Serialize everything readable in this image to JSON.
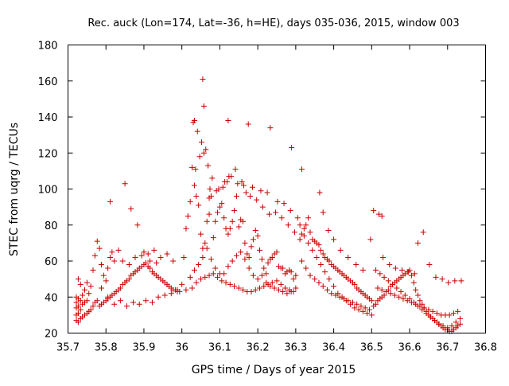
{
  "chart_data": {
    "type": "scatter",
    "title": "Rec. auck (Lon=174, Lat=-36, h=HE), days 035-036, 2015, window 003",
    "xlabel": "GPS time / Days of year 2015",
    "ylabel": "STEC from uqrg / TECUs",
    "xlim": [
      35.7,
      36.8
    ],
    "ylim": [
      20,
      180
    ],
    "xticks": [
      35.7,
      35.8,
      35.9,
      36.0,
      36.1,
      36.2,
      36.3,
      36.4,
      36.5,
      36.6,
      36.7,
      36.8
    ],
    "xtick_labels": [
      "35.7",
      "35.8",
      "35.9",
      "36",
      "36.1",
      "36.2",
      "36.3",
      "36.4",
      "36.5",
      "36.6",
      "36.7",
      "36.8"
    ],
    "yticks": [
      20,
      40,
      60,
      80,
      100,
      120,
      140,
      160,
      180
    ],
    "ytick_labels": [
      "20",
      "40",
      "60",
      "80",
      "100",
      "120",
      "140",
      "160",
      "180"
    ],
    "grid": false,
    "legend": "none",
    "marker": "plus",
    "marker_color": "#cc0000",
    "x": [
      35.722,
      35.722,
      35.722,
      35.722,
      35.722,
      35.727,
      35.727,
      35.727,
      35.727,
      35.727,
      35.733,
      35.733,
      35.733,
      35.733,
      35.738,
      35.738,
      35.738,
      35.744,
      35.744,
      35.744,
      35.75,
      35.75,
      35.75,
      35.755,
      35.755,
      35.76,
      35.76,
      35.766,
      35.766,
      35.771,
      35.771,
      35.777,
      35.777,
      35.783,
      35.783,
      35.788,
      35.788,
      35.794,
      35.794,
      35.8,
      35.8,
      35.805,
      35.805,
      35.811,
      35.811,
      35.816,
      35.816,
      35.822,
      35.822,
      35.827,
      35.833,
      35.838,
      35.844,
      35.85,
      35.855,
      35.861,
      35.866,
      35.872,
      35.877,
      35.883,
      35.888,
      35.894,
      35.9,
      35.905,
      35.911,
      35.916,
      35.922,
      35.927,
      35.933,
      35.938,
      35.944,
      35.95,
      35.955,
      35.961,
      35.966,
      35.972,
      35.977,
      35.983,
      35.988,
      35.994,
      35.788,
      35.805,
      35.822,
      35.838,
      35.855,
      35.872,
      35.888,
      35.905,
      35.922,
      35.938,
      35.955,
      35.972,
      35.988,
      35.833,
      35.844,
      35.861,
      35.877,
      35.894,
      35.911,
      35.927,
      35.944,
      35.961,
      35.977,
      35.811,
      35.85,
      35.866,
      35.883,
      35.9,
      35.916,
      35.933,
      36.0,
      36.005,
      36.011,
      36.016,
      36.022,
      36.027,
      36.033,
      36.038,
      36.044,
      36.05,
      36.055,
      36.061,
      36.066,
      36.072,
      36.077,
      36.083,
      36.088,
      36.094,
      36.1,
      36.105,
      36.111,
      36.116,
      36.122,
      36.127,
      36.133,
      36.138,
      36.144,
      36.15,
      36.155,
      36.161,
      36.166,
      36.172,
      36.177,
      36.183,
      36.188,
      36.194,
      36.2,
      36.205,
      36.211,
      36.216,
      36.222,
      36.227,
      36.233,
      36.238,
      36.244,
      36.25,
      36.255,
      36.261,
      36.266,
      36.272,
      36.277,
      36.283,
      36.288,
      36.294,
      36.3,
      36.011,
      36.022,
      36.033,
      36.044,
      36.055,
      36.066,
      36.077,
      36.088,
      36.1,
      36.111,
      36.122,
      36.133,
      36.144,
      36.155,
      36.166,
      36.177,
      36.188,
      36.2,
      36.211,
      36.222,
      36.233,
      36.244,
      36.255,
      36.266,
      36.277,
      36.288,
      36.3,
      36.027,
      36.038,
      36.05,
      36.061,
      36.072,
      36.083,
      36.094,
      36.105,
      36.116,
      36.127,
      36.138,
      36.15,
      36.161,
      36.172,
      36.183,
      36.194,
      36.205,
      36.216,
      36.227,
      36.238,
      36.25,
      36.261,
      36.272,
      36.283,
      36.294,
      36.03,
      36.041,
      36.052,
      36.063,
      36.074,
      36.091,
      36.108,
      36.119,
      36.13,
      36.141,
      36.158,
      36.169,
      36.18,
      36.197,
      36.213,
      36.23,
      36.247,
      36.263,
      36.28,
      36.297,
      36.036,
      36.047,
      36.058,
      36.069,
      36.08,
      36.097,
      36.113,
      36.124,
      36.147,
      36.163,
      36.186,
      36.208,
      36.225,
      36.252,
      36.269,
      36.286,
      36.055,
      36.033,
      36.058,
      36.072,
      36.122,
      36.175,
      36.233,
      36.289,
      36.316,
      36.305,
      36.311,
      36.316,
      36.322,
      36.327,
      36.333,
      36.338,
      36.344,
      36.35,
      36.355,
      36.361,
      36.366,
      36.372,
      36.377,
      36.383,
      36.388,
      36.394,
      36.4,
      36.405,
      36.411,
      36.416,
      36.422,
      36.427,
      36.433,
      36.438,
      36.444,
      36.45,
      36.455,
      36.461,
      36.466,
      36.472,
      36.477,
      36.483,
      36.488,
      36.494,
      36.5,
      36.311,
      36.322,
      36.333,
      36.344,
      36.355,
      36.366,
      36.377,
      36.388,
      36.4,
      36.411,
      36.422,
      36.433,
      36.444,
      36.455,
      36.466,
      36.477,
      36.488,
      36.5,
      36.316,
      36.327,
      36.338,
      36.35,
      36.361,
      36.372,
      36.383,
      36.394,
      36.405,
      36.416,
      36.427,
      36.438,
      36.45,
      36.461,
      36.472,
      36.483,
      36.494,
      36.363,
      36.372,
      36.386,
      36.4,
      36.418,
      36.438,
      36.459,
      36.477,
      36.497,
      36.505,
      36.519,
      36.527,
      36.505,
      36.511,
      36.516,
      36.522,
      36.527,
      36.533,
      36.538,
      36.544,
      36.55,
      36.555,
      36.561,
      36.566,
      36.572,
      36.577,
      36.583,
      36.588,
      36.594,
      36.6,
      36.605,
      36.611,
      36.616,
      36.622,
      36.627,
      36.633,
      36.638,
      36.644,
      36.65,
      36.655,
      36.661,
      36.666,
      36.672,
      36.677,
      36.683,
      36.688,
      36.694,
      36.7,
      36.705,
      36.711,
      36.716,
      36.722,
      36.727,
      36.733,
      36.511,
      36.522,
      36.533,
      36.544,
      36.555,
      36.566,
      36.577,
      36.588,
      36.6,
      36.611,
      36.622,
      36.633,
      36.644,
      36.655,
      36.666,
      36.677,
      36.688,
      36.7,
      36.711,
      36.722,
      36.733,
      36.516,
      36.527,
      36.538,
      36.55,
      36.561,
      36.572,
      36.583,
      36.594,
      36.605,
      36.616,
      36.627,
      36.638,
      36.65,
      36.661,
      36.672,
      36.683,
      36.694,
      36.705,
      36.716,
      36.727,
      36.53,
      36.547,
      36.563,
      36.58,
      36.597,
      36.613,
      36.622,
      36.636,
      36.652,
      36.669,
      36.686,
      36.702,
      36.719,
      36.736
    ],
    "y": [
      27,
      30,
      34,
      37,
      40,
      26,
      31,
      35,
      39,
      50,
      28,
      33,
      38,
      47,
      29,
      36,
      41,
      30,
      37,
      44,
      31,
      38,
      48,
      32,
      42,
      33,
      46,
      35,
      55,
      37,
      63,
      38,
      71,
      35,
      67,
      36,
      58,
      37,
      52,
      38,
      49,
      39,
      56,
      40,
      62,
      41,
      65,
      42,
      60,
      43,
      44,
      45,
      47,
      48,
      49,
      50,
      52,
      53,
      54,
      55,
      56,
      57,
      58,
      59,
      57,
      56,
      54,
      53,
      52,
      51,
      50,
      49,
      48,
      47,
      46,
      45,
      44,
      44,
      43,
      43,
      45,
      40,
      36,
      38,
      35,
      37,
      36,
      38,
      37,
      40,
      41,
      42,
      44,
      66,
      60,
      58,
      62,
      63,
      64,
      66,
      62,
      64,
      60,
      93,
      103,
      89,
      80,
      65,
      60,
      59,
      47,
      62,
      78,
      85,
      93,
      112,
      102,
      96,
      91,
      75,
      67,
      70,
      82,
      86,
      96,
      73,
      82,
      87,
      90,
      92,
      84,
      78,
      75,
      78,
      82,
      88,
      96,
      79,
      83,
      82,
      70,
      64,
      62,
      68,
      72,
      77,
      74,
      66,
      61,
      56,
      53,
      59,
      61,
      62,
      64,
      65,
      57,
      56,
      56,
      53,
      54,
      55,
      54,
      50,
      52,
      44,
      51,
      55,
      58,
      62,
      67,
      61,
      56,
      53,
      53,
      57,
      60,
      63,
      65,
      61,
      56,
      52,
      50,
      52,
      48,
      46,
      45,
      44,
      43,
      42,
      43,
      45,
      45,
      48,
      50,
      51,
      52,
      53,
      51,
      49,
      48,
      47,
      46,
      45,
      44,
      43,
      43,
      44,
      45,
      46,
      47,
      48,
      49,
      47,
      45,
      44,
      43,
      137,
      132,
      126,
      122,
      100,
      99,
      101,
      104,
      107,
      111,
      104,
      98,
      96,
      94,
      90,
      86,
      87,
      84,
      80,
      76,
      111,
      118,
      120,
      113,
      106,
      100,
      104,
      107,
      103,
      102,
      101,
      99,
      98,
      93,
      92,
      88,
      161,
      138,
      146,
      95,
      138,
      136,
      134,
      123,
      111,
      84,
      72,
      75,
      78,
      80,
      84,
      76,
      72,
      71,
      70,
      69,
      66,
      64,
      62,
      61,
      60,
      58,
      57,
      56,
      55,
      54,
      53,
      52,
      51,
      50,
      49,
      48,
      47,
      45,
      44,
      43,
      42,
      41,
      40,
      39,
      38,
      80,
      74,
      70,
      66,
      62,
      58,
      54,
      50,
      46,
      42,
      40,
      38,
      36,
      34,
      33,
      32,
      31,
      30,
      60,
      56,
      52,
      50,
      48,
      46,
      44,
      42,
      41,
      40,
      39,
      38,
      37,
      36,
      35,
      34,
      33,
      98,
      87,
      77,
      72,
      66,
      62,
      58,
      55,
      72,
      88,
      86,
      85,
      35,
      36,
      38,
      39,
      40,
      41,
      43,
      44,
      46,
      47,
      48,
      49,
      50,
      51,
      52,
      53,
      54,
      55,
      52,
      48,
      44,
      41,
      38,
      36,
      34,
      32,
      30,
      29,
      28,
      27,
      26,
      25,
      24,
      23,
      22,
      22,
      21,
      21,
      22,
      23,
      24,
      25,
      55,
      53,
      51,
      49,
      47,
      45,
      43,
      41,
      39,
      37,
      35,
      33,
      31,
      29,
      27,
      25,
      24,
      23,
      24,
      26,
      28,
      45,
      44,
      43,
      42,
      41,
      40,
      39,
      38,
      37,
      36,
      35,
      34,
      33,
      32,
      31,
      30,
      30,
      30,
      31,
      32,
      62,
      58,
      56,
      55,
      54,
      53,
      70,
      76,
      58,
      51,
      50,
      48,
      49,
      49
    ]
  }
}
